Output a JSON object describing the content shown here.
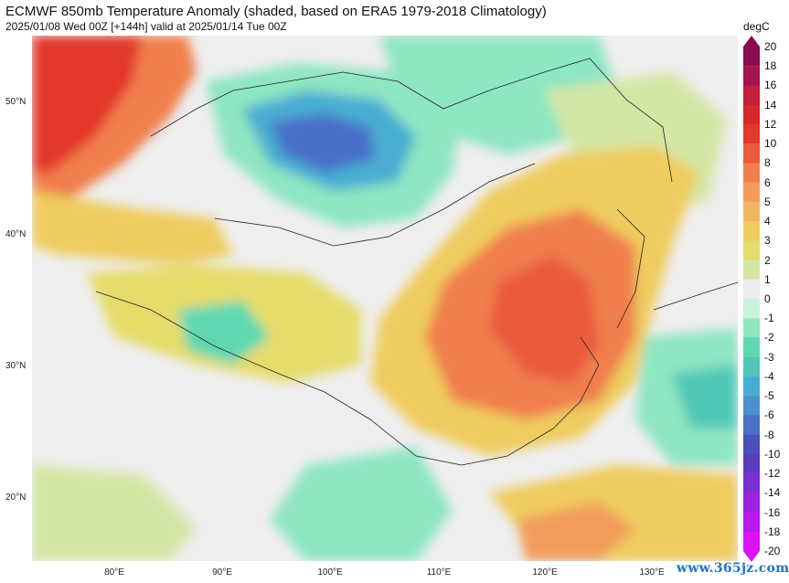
{
  "title": "ECMWF 850mb Temperature Anomaly (shaded, based on ERA5 1979-2018 Climatology)",
  "subtitle": "2025/01/08 Wed 00Z [+144h] valid at 2025/01/14 Tue 00Z",
  "units": "degC",
  "watermark": "www.365jz.com",
  "lat_labels": [
    "50°N",
    "40°N",
    "30°N",
    "20°N"
  ],
  "lon_labels": [
    "80°E",
    "90°E",
    "100°E",
    "110°E",
    "120°E",
    "130°E"
  ],
  "colorbar": {
    "levels": [
      "20",
      "18",
      "16",
      "14",
      "12",
      "10",
      "8",
      "6",
      "5",
      "4",
      "3",
      "2",
      "1",
      "0",
      "-1",
      "-2",
      "-3",
      "-4",
      "-5",
      "-6",
      "-8",
      "-10",
      "-12",
      "-14",
      "-16",
      "-18",
      "-20"
    ],
    "colors": [
      "#8b0a50",
      "#a5124d",
      "#c41e3a",
      "#d7262b",
      "#e3382c",
      "#ea5a3c",
      "#f07f4e",
      "#f29c5b",
      "#f3b562",
      "#efcc5e",
      "#e6dc6b",
      "#d4e6a5",
      "#ececec",
      "#c8f2dc",
      "#8ee6c2",
      "#5ed8b2",
      "#4fc8b6",
      "#4aaed2",
      "#4a90d0",
      "#4a70c8",
      "#4a4fbe",
      "#5a3cc4",
      "#7a2fd2",
      "#9a22e0",
      "#bb18ec",
      "#dd10f6"
    ]
  },
  "map": {
    "field": "850mb temperature anomaly",
    "color_scale": {
      "warm": "#e85a3c",
      "cold": "#4a70c8",
      "neutral": "#eeeeee"
    }
  }
}
